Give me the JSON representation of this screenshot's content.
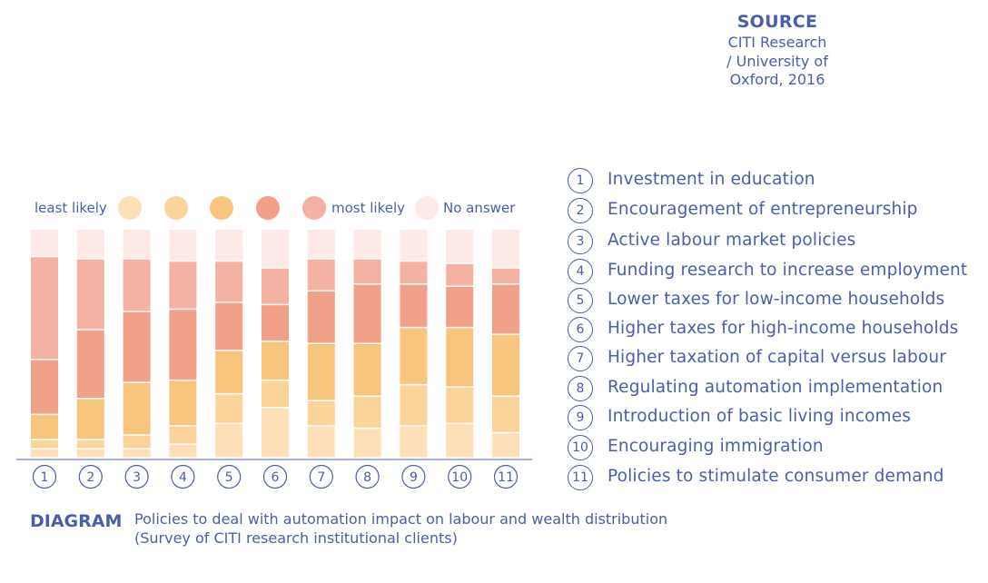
{
  "source": {
    "heading": "SOURCE",
    "line1": "CITI Research",
    "line2": "/ University of",
    "line3": "Oxford, 2016"
  },
  "legend": {
    "least_label": "least likely",
    "most_label": "most likely",
    "no_answer_label": "No answer",
    "colors": [
      "#fde0b8",
      "#fbd49c",
      "#f8c57f",
      "#f1a08a",
      "#f4b3a2",
      "#fde9e6"
    ]
  },
  "diagram": {
    "heading": "DIAGRAM",
    "line1": "Policies to deal with automation impact on labour and wealth distribution",
    "line2": "(Survey of CITI research institutional clients)"
  },
  "chart_data": {
    "type": "bar",
    "stacked": true,
    "percent": true,
    "categories": [
      "1",
      "2",
      "3",
      "4",
      "5",
      "6",
      "7",
      "8",
      "9",
      "10",
      "11"
    ],
    "category_labels": [
      "Investment in education",
      "Encouragement of entrepreneurship",
      "Active labour market policies",
      "Funding research to increase employment",
      "Lower taxes for low-income households",
      "Higher taxes for high-income households",
      "Higher taxation of capital versus labour",
      "Regulating automation implementation",
      "Introduction of basic living incomes",
      "Encouraging immigration",
      "Policies to stimulate consumer demand"
    ],
    "series": [
      {
        "name": "least likely",
        "color": "#fde0b8",
        "values": [
          4,
          4,
          4,
          6,
          15,
          22,
          14,
          13,
          14,
          15,
          11
        ]
      },
      {
        "name": "",
        "color": "#fbd49c",
        "values": [
          4,
          4,
          6,
          8,
          13,
          12,
          11,
          14,
          18,
          16,
          16
        ]
      },
      {
        "name": "",
        "color": "#f8c57f",
        "values": [
          11,
          18,
          23,
          20,
          19,
          17,
          25,
          23,
          25,
          26,
          27
        ]
      },
      {
        "name": "",
        "color": "#f1a08a",
        "values": [
          24,
          30,
          31,
          31,
          21,
          16,
          23,
          26,
          19,
          18,
          22
        ]
      },
      {
        "name": "most likely",
        "color": "#f4b3a2",
        "values": [
          45,
          31,
          23,
          21,
          18,
          16,
          14,
          11,
          10,
          10,
          7
        ]
      },
      {
        "name": "No answer",
        "color": "#fde9e6",
        "values": [
          12,
          13,
          13,
          14,
          14,
          17,
          13,
          13,
          14,
          15,
          17
        ]
      }
    ],
    "ylim": [
      0,
      100
    ],
    "grid": false,
    "legend_position": "top"
  }
}
